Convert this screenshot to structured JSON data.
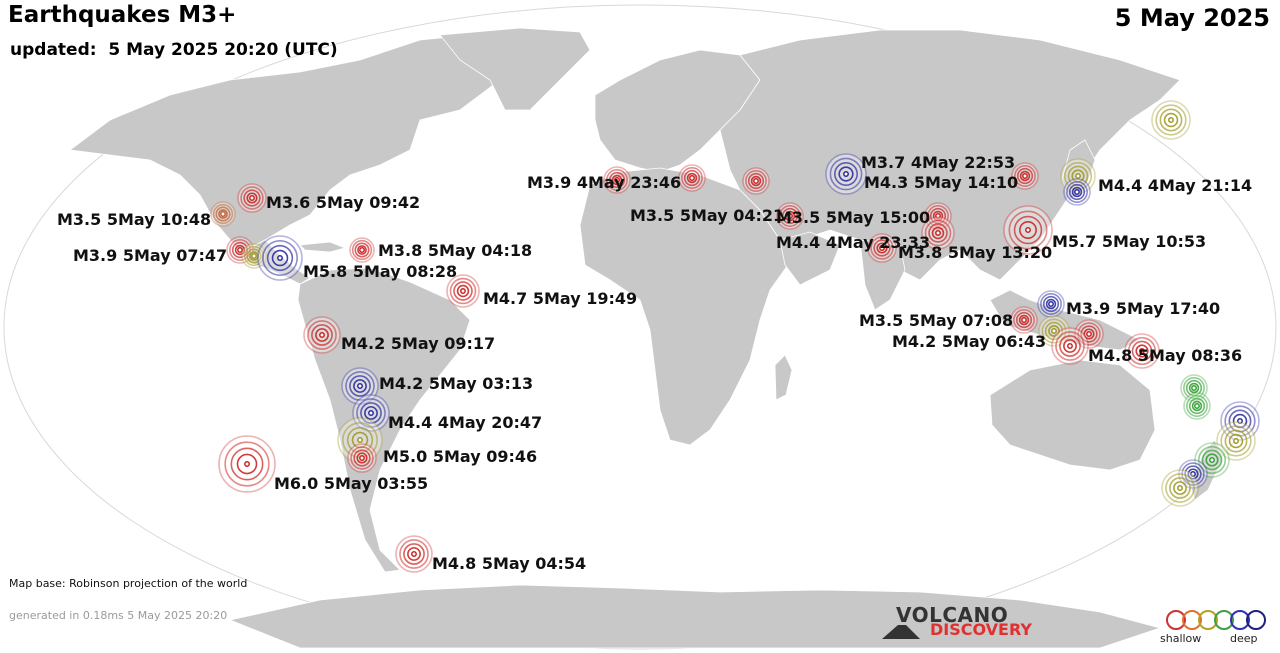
{
  "header": {
    "title": "Earthquakes M3+",
    "updated": "updated:  5 May 2025 20:20 (UTC)",
    "date": "5 May 2025"
  },
  "footer": {
    "map_base": "Map base: Robinson projection of the world",
    "generated": "generated in 0.18ms  5 May 2025 20:20"
  },
  "logo": {
    "line1": "VOLCANO",
    "line2": "DISCOVERY"
  },
  "legend": {
    "shallow": "shallow",
    "deep": "deep",
    "colors": [
      "#d03030",
      "#e07030",
      "#b8a020",
      "#40a040",
      "#3030b0",
      "#202080"
    ]
  },
  "colors": {
    "ocean": "#ffffff",
    "land": "#c8c8c8",
    "border": "#ffffff",
    "shallow": "#cc2222",
    "mid": "#a09820",
    "deep": "#2a2aa0",
    "green": "#30a030"
  },
  "quakes": [
    {
      "label": "M3.6  5May 09:42"
    },
    {
      "label": "M3.5  5May 10:48"
    },
    {
      "label": "M3.9  5May 07:47"
    },
    {
      "label": "M3.8  5May 04:18"
    },
    {
      "label": "M5.8  5May 08:28"
    },
    {
      "label": "M4.7  5May 19:49"
    },
    {
      "label": "M4.2  5May 09:17"
    },
    {
      "label": "M4.2  5May 03:13"
    },
    {
      "label": "M4.4  4May 20:47"
    },
    {
      "label": "M5.0  5May 09:46"
    },
    {
      "label": "M6.0  5May 03:55"
    },
    {
      "label": "M4.8  5May 04:54"
    },
    {
      "label": "M3.9  4May 23:46"
    },
    {
      "label": "M3.5  5May 04:21"
    },
    {
      "label": "M3.5  5May 15:00"
    },
    {
      "label": "M4.4  4May 23:33"
    },
    {
      "label": "M3.8  5May 13:20"
    },
    {
      "label": "M3.7  4May 22:53"
    },
    {
      "label": "M4.3  5May 14:10"
    },
    {
      "label": "M5.7  5May 10:53"
    },
    {
      "label": "M4.4  4May 21:14"
    },
    {
      "label": "M3.9  5May 17:40"
    },
    {
      "label": "M3.5  5May 07:08"
    },
    {
      "label": "M4.2  5May 06:43"
    },
    {
      "label": "M4.8  5May 08:36"
    }
  ]
}
